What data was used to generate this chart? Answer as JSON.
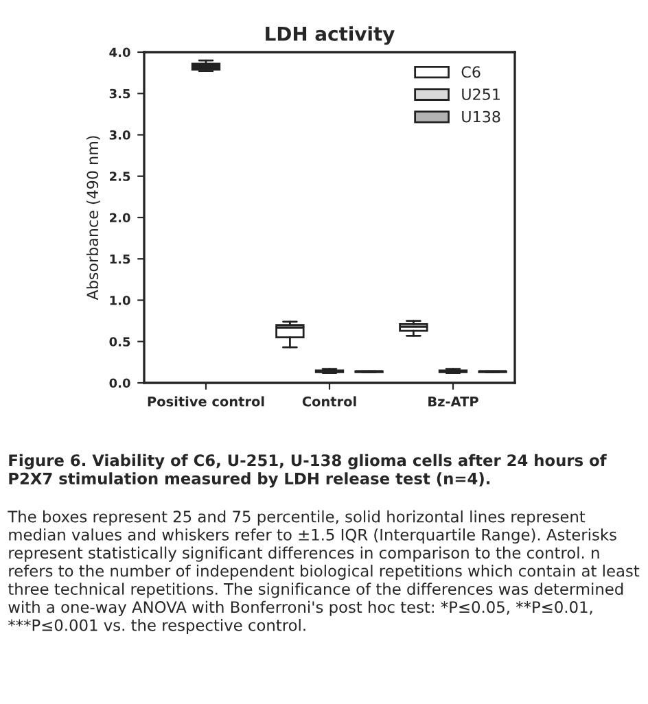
{
  "chart_data": {
    "type": "box",
    "title": "LDH activity",
    "ylabel": "Absorbance (490 nm)",
    "categories": [
      "Positive control",
      "Control",
      "Bz-ATP"
    ],
    "ylim": [
      0,
      4.0
    ],
    "yticks": [
      {
        "value": 0,
        "label": "0.0"
      },
      {
        "value": 0.5,
        "label": "0.5"
      },
      {
        "value": 1,
        "label": "1.0"
      },
      {
        "value": 1.5,
        "label": "1.5"
      },
      {
        "value": 2,
        "label": "2.0"
      },
      {
        "value": 2.5,
        "label": "2.5"
      },
      {
        "value": 3,
        "label": "3.0"
      },
      {
        "value": 3.5,
        "label": "3.5"
      },
      {
        "value": 4,
        "label": "4.0"
      }
    ],
    "series": [
      {
        "color": "#222222",
        "boxes": [
          {
            "low": 3.77,
            "q1": 3.79,
            "median": 3.82,
            "q3": 3.86,
            "high": 3.9
          },
          null,
          null
        ]
      },
      {
        "name": "C6",
        "color": "#ffffff",
        "boxes": [
          null,
          {
            "low": 0.43,
            "q1": 0.55,
            "median": 0.67,
            "q3": 0.7,
            "high": 0.74
          },
          {
            "low": 0.57,
            "q1": 0.63,
            "median": 0.68,
            "q3": 0.71,
            "high": 0.75
          }
        ]
      },
      {
        "name": "U251",
        "color": "#d9d9d9",
        "boxes": [
          null,
          {
            "low": 0.12,
            "q1": 0.13,
            "median": 0.14,
            "q3": 0.15,
            "high": 0.17
          },
          {
            "low": 0.12,
            "q1": 0.13,
            "median": 0.14,
            "q3": 0.15,
            "high": 0.17
          }
        ]
      },
      {
        "name": "U138",
        "color": "#b3b3b3",
        "boxes": [
          null,
          {
            "low": 0.13,
            "q1": 0.13,
            "median": 0.14,
            "q3": 0.14,
            "high": 0.14
          },
          {
            "low": 0.13,
            "q1": 0.13,
            "median": 0.14,
            "q3": 0.14,
            "high": 0.14
          }
        ]
      }
    ],
    "legend": "top right",
    "grid": false,
    "annotations": [
      "Figure 6. Viability of C6, U-251, U-138 glioma cells after 24 hours of P2X7 stimulation measured by LDH release test (n=4).",
      "The boxes represent 25 and 75 percentile, solid horizontal lines represent median values and whiskers refer to ±1.5 IQR (Interquartile Range). Asterisks represent statistically significant differences in comparison to the control. n refers to the number of independent biological repetitions which contain at least three technical repetitions. The significance of the differences was determined with a one-way ANOVA with Bonferroni's post hoc test: *P≤0.05, **P≤0.01, ***P≤0.001 vs. the respective control."
    ]
  }
}
